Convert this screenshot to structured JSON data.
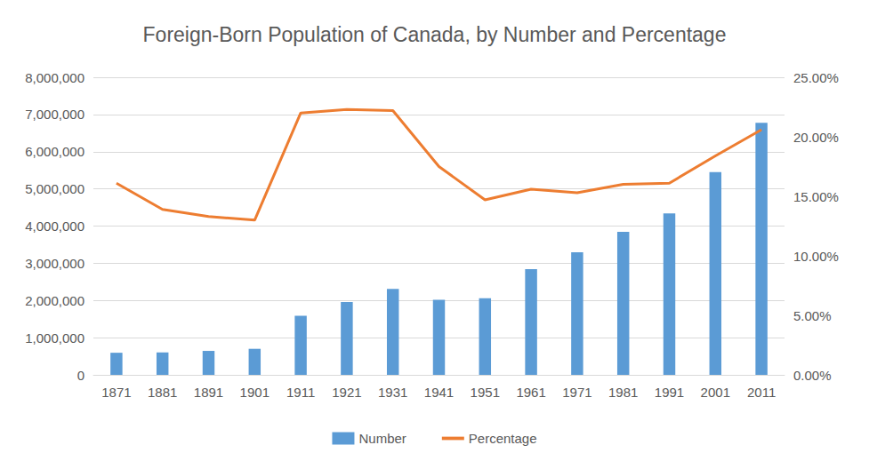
{
  "chart_data": {
    "type": "bar",
    "title": "Foreign-Born Population of Canada, by Number and Percentage",
    "categories": [
      "1871",
      "1881",
      "1891",
      "1901",
      "1911",
      "1921",
      "1931",
      "1941",
      "1951",
      "1961",
      "1971",
      "1981",
      "1991",
      "2001",
      "2011"
    ],
    "series": [
      {
        "name": "Number",
        "type": "bar",
        "color": "#5b9bd5",
        "values": [
          594000,
          603000,
          644000,
          700000,
          1587000,
          1956000,
          2308000,
          2019000,
          2060000,
          2844000,
          3296000,
          3843000,
          4343000,
          5448000,
          6776000
        ]
      },
      {
        "name": "Percentage",
        "type": "line",
        "color": "#ed7d31",
        "axis": "y2",
        "marker": "none",
        "values": [
          16.1,
          13.9,
          13.3,
          13.0,
          22.0,
          22.3,
          22.2,
          17.5,
          14.7,
          15.6,
          15.3,
          16.0,
          16.1,
          18.4,
          20.6
        ]
      }
    ],
    "ylim": [
      0,
      8000000
    ],
    "yticks": [
      0,
      {
        "value": 1000000,
        "label": "1,000,000"
      },
      {
        "value": 2000000,
        "label": "2,000,000"
      },
      {
        "value": 3000000,
        "label": "3,000,000"
      },
      {
        "value": 4000000,
        "label": "4,000,000"
      },
      {
        "value": 5000000,
        "label": "5,000,000"
      },
      {
        "value": 6000000,
        "label": "6,000,000"
      },
      {
        "value": 7000000,
        "label": "7,000,000"
      },
      {
        "value": 8000000,
        "label": "8,000,000"
      }
    ],
    "y2lim": [
      0,
      25
    ],
    "y2ticks": [
      {
        "value": 0,
        "label": "0.00%"
      },
      {
        "value": 5,
        "label": "5.00%"
      },
      {
        "value": 10,
        "label": "10.00%"
      },
      {
        "value": 15,
        "label": "15.00%"
      },
      {
        "value": 20,
        "label": "20.00%"
      },
      {
        "value": 25,
        "label": "25.00%"
      }
    ],
    "grid": true,
    "legend": "bottom"
  }
}
